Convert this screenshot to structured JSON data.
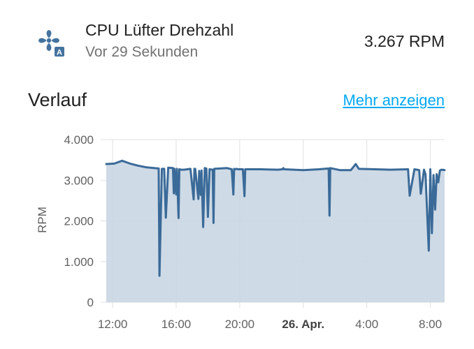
{
  "entity": {
    "name": "CPU Lüfter Drehzahl",
    "last_changed": "Vor 29 Sekunden",
    "state": "3.267 RPM",
    "icon": "fan-icon"
  },
  "history": {
    "title": "Verlauf",
    "more_link": "Mehr anzeigen"
  },
  "colors": {
    "line": "#3a6a98",
    "fill": "#c9d6e3",
    "grid": "#e0e0e0",
    "axis_text": "#616161",
    "icon": "#44739e"
  },
  "chart_data": {
    "type": "line",
    "ylabel": "RPM",
    "xlabel": "",
    "ylim": [
      0,
      4000
    ],
    "yticks": [
      {
        "value": 0,
        "label": "0"
      },
      {
        "value": 1000,
        "label": "1.000"
      },
      {
        "value": 2000,
        "label": "2.000"
      },
      {
        "value": 3000,
        "label": "3.000"
      },
      {
        "value": 4000,
        "label": "4.000"
      }
    ],
    "xlim": [
      11.6,
      32.9
    ],
    "xticks": [
      {
        "value": 12,
        "label": "12:00",
        "bold": false
      },
      {
        "value": 16,
        "label": "16:00",
        "bold": false
      },
      {
        "value": 20,
        "label": "20:00",
        "bold": false
      },
      {
        "value": 24,
        "label": "26. Apr.",
        "bold": true
      },
      {
        "value": 28,
        "label": "4:00",
        "bold": false
      },
      {
        "value": 32,
        "label": "8:00",
        "bold": false
      }
    ],
    "grid": true,
    "series": [
      {
        "x": [
          11.6,
          12.1,
          12.6,
          13.1,
          13.6,
          14.1,
          14.6,
          14.9,
          14.95,
          15.1,
          15.25,
          15.35,
          15.5,
          15.8,
          15.85,
          15.9,
          16.0,
          16.05,
          16.15,
          16.2,
          16.3,
          16.5,
          16.9,
          17.1,
          17.15,
          17.2,
          17.4,
          17.45,
          17.55,
          17.6,
          17.7,
          17.8,
          17.9,
          18.0,
          18.1,
          18.3,
          18.35,
          18.4,
          19.2,
          19.5,
          19.6,
          19.65,
          19.7,
          19.8,
          19.9,
          20.2,
          20.3,
          20.35,
          20.4,
          20.6,
          21.3,
          22.4,
          22.7,
          22.75,
          22.8,
          24.0,
          25.0,
          25.6,
          25.65,
          25.7,
          26.3,
          27.0,
          27.3,
          27.5,
          28.5,
          29.5,
          30.6,
          30.7,
          31.0,
          31.3,
          31.4,
          31.6,
          31.7,
          31.9,
          32.0,
          32.1,
          32.2,
          32.3,
          32.4,
          32.5,
          32.6,
          32.7,
          32.9
        ],
        "y": [
          3400,
          3410,
          3480,
          3410,
          3360,
          3320,
          3300,
          3290,
          650,
          3280,
          3280,
          2080,
          3310,
          3300,
          2680,
          3280,
          2650,
          3280,
          2070,
          3270,
          3260,
          3260,
          3280,
          2530,
          3280,
          3280,
          2540,
          3230,
          2640,
          3240,
          1850,
          3300,
          3290,
          2100,
          3270,
          3260,
          1950,
          3280,
          3300,
          3270,
          2650,
          3280,
          3270,
          3280,
          3270,
          3270,
          2610,
          3270,
          3270,
          3270,
          3270,
          3260,
          3270,
          3300,
          3270,
          3250,
          3270,
          3290,
          2130,
          3300,
          3250,
          3250,
          3400,
          3280,
          3270,
          3260,
          3270,
          2620,
          3270,
          3250,
          2670,
          3260,
          3140,
          1270,
          3270,
          1700,
          3130,
          2280,
          3150,
          2950,
          3240,
          3260,
          3250
        ]
      }
    ]
  }
}
